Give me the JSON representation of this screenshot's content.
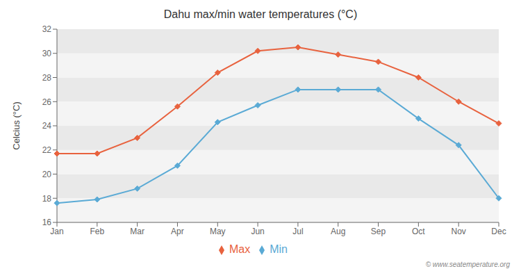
{
  "chart_data": {
    "type": "line",
    "title": "Dahu max/min water temperatures (°C)",
    "y_label": "Celcius (°C)",
    "categories": [
      "Jan",
      "Feb",
      "Mar",
      "Apr",
      "May",
      "Jun",
      "Jul",
      "Aug",
      "Sep",
      "Oct",
      "Nov",
      "Dec"
    ],
    "series": [
      {
        "name": "Max",
        "color": "#e8623e",
        "values": [
          21.7,
          21.7,
          23.0,
          25.6,
          28.4,
          30.2,
          30.5,
          29.9,
          29.3,
          28.0,
          26.0,
          24.2
        ]
      },
      {
        "name": "Min",
        "color": "#5aaad5",
        "values": [
          17.6,
          17.9,
          18.8,
          20.7,
          24.3,
          25.7,
          27.0,
          27.0,
          27.0,
          24.6,
          22.4,
          18.0
        ]
      }
    ],
    "ylim": [
      16,
      32
    ],
    "yticks": [
      16,
      18,
      20,
      22,
      24,
      26,
      28,
      30,
      32
    ],
    "grid": false,
    "legend": "bottom",
    "marker": "diamond",
    "annotations": [
      "© www.seatemperature.org"
    ]
  }
}
